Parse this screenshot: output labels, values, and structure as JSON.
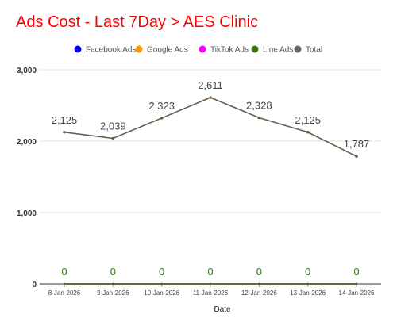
{
  "chart_data": {
    "type": "line",
    "title": "Ads Cost - Last 7Day > AES Clinic",
    "xlabel": "Date",
    "ylabel": "",
    "ylim": [
      0,
      3000
    ],
    "yticks": [
      0,
      1000,
      2000,
      3000
    ],
    "ytick_labels": [
      "0",
      "1,000",
      "2,000",
      "3,000"
    ],
    "categories": [
      "8-Jan-2026",
      "9-Jan-2026",
      "10-Jan-2026",
      "11-Jan-2026",
      "12-Jan-2026",
      "13-Jan-2026",
      "14-Jan-2026"
    ],
    "grid": true,
    "legend_position": "top-center",
    "series": [
      {
        "name": "Facebook Ads",
        "color": "#0000ff",
        "values": [
          0,
          0,
          0,
          0,
          0,
          0,
          0
        ],
        "labels": []
      },
      {
        "name": "Google Ads",
        "color": "#ff9900",
        "values": [
          0,
          0,
          0,
          0,
          0,
          0,
          0
        ],
        "labels": []
      },
      {
        "name": "TikTok Ads",
        "color": "#ff00ff",
        "values": [
          0,
          0,
          0,
          0,
          0,
          0,
          0
        ],
        "labels": []
      },
      {
        "name": "Line Ads",
        "color": "#38761d",
        "values": [
          0,
          0,
          0,
          0,
          0,
          0,
          0
        ],
        "labels": [
          "0",
          "0",
          "0",
          "0",
          "0",
          "0",
          "0"
        ]
      },
      {
        "name": "Total",
        "color": "#666666",
        "line_color": "#6b5a48",
        "values": [
          2125,
          2039,
          2323,
          2611,
          2328,
          2125,
          1787
        ],
        "labels": [
          "2,125",
          "2,039",
          "2,323",
          "2,611",
          "2,328",
          "2,125",
          "1,787"
        ]
      }
    ]
  },
  "colors": {
    "title": "#ff0000",
    "label_text": "#444444",
    "grid": "#e0e0e0",
    "baseline": "#333333"
  }
}
